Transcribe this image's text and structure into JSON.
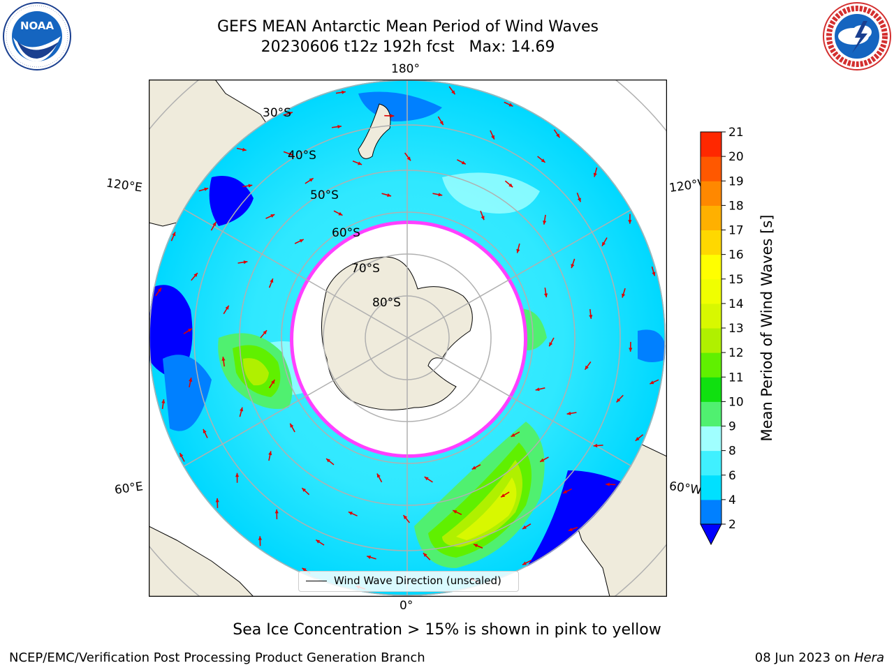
{
  "title": {
    "line1": "GEFS MEAN Antarctic Mean Period of Wind Waves",
    "line2": "20230606 t12z 192h fcst   Max: 14.69"
  },
  "logos": {
    "noara_text": "NOAA",
    "noaa_ring": "NATIONAL OCEANIC AND ATMOSPHERIC ADMINISTRATION · U.S. DEPARTMENT OF COMMERCE",
    "nws_ring": "NATIONAL WEATHER SERVICE"
  },
  "map": {
    "projection": "south-polar-stereographic",
    "lon_labels": {
      "top": "180°",
      "bottom": "0°",
      "left_upper": "120°E",
      "left_lower": "60°E",
      "right_upper": "120°W",
      "right_lower": "60°W"
    },
    "lat_labels": [
      "30°S",
      "40°S",
      "50°S",
      "60°S",
      "70°S",
      "80°S"
    ],
    "legend": "Wind Wave Direction (unscaled)",
    "colors": {
      "land": "#efebdc",
      "ice_edge": "#ff40ff",
      "arrow": "#e00000",
      "grid": "#b0b0b0"
    }
  },
  "colorbar": {
    "label": "Mean Period of Wind Waves [s]",
    "ticks": [
      "2",
      "4",
      "6",
      "8",
      "9",
      "10",
      "11",
      "12",
      "13",
      "14",
      "15",
      "16",
      "17",
      "18",
      "19",
      "20",
      "21"
    ],
    "colors": [
      "#0080ff",
      "#00e0ff",
      "#40f0ff",
      "#a0ffff",
      "#50f070",
      "#10e010",
      "#60f000",
      "#b0f000",
      "#d8f800",
      "#f0ff00",
      "#ffff00",
      "#ffd800",
      "#ffb000",
      "#ff8800",
      "#ff5800",
      "#ff2800",
      "#ff0000"
    ],
    "under_color": "#0000ff"
  },
  "subtitle": "Sea Ice Concentration > 15% is shown in pink to yellow",
  "footer": {
    "left": "NCEP/EMC/Verification Post Processing Product Generation Branch",
    "date": "08 Jun 2023 on ",
    "host": "Hera"
  }
}
